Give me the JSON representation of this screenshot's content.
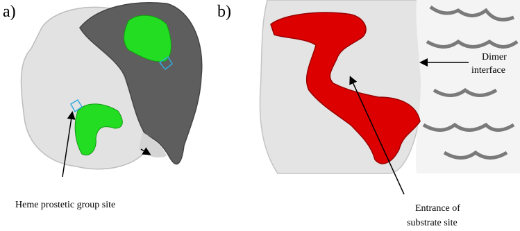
{
  "panels": [
    {
      "label": "a)",
      "annotations": [
        {
          "lines": [
            "Heme prostetic group site"
          ]
        }
      ]
    },
    {
      "label": "b)",
      "annotations": [
        {
          "lines": [
            "Dimer",
            "interface"
          ]
        },
        {
          "lines": [
            "Entrance of",
            "substrate site"
          ]
        }
      ]
    }
  ]
}
